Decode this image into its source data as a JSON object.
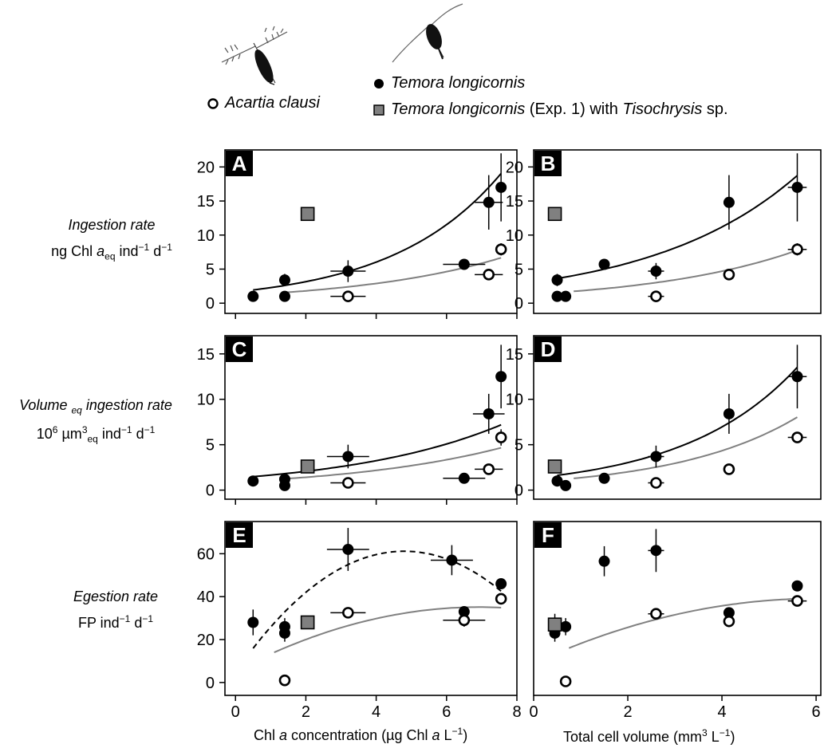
{
  "legend": {
    "acartia": "Acartia clausi",
    "temora": "Temora longicornis",
    "temora_exp_species": "Temora longicornis",
    "temora_exp_mid": " (Exp. 1) with ",
    "temora_exp_food": "Tisochrysis",
    "temora_exp_tail": " sp."
  },
  "row_labels": [
    {
      "title": "Ingestion rate",
      "units_a": "ng Chl ",
      "units_b": "a",
      "units_c": "eq",
      "units_d": " ind",
      "units_e": "−1",
      "units_f": " d",
      "units_g": "−1"
    },
    {
      "title_a": "Volume ",
      "title_b": "eq",
      "title_c": " ingestion rate",
      "units_a": "10",
      "units_b": "6",
      "units_c": " µm",
      "units_d": "3",
      "units_e": "eq",
      "units_f": " ind",
      "units_g": "−1",
      "units_h": " d",
      "units_i": "−1"
    },
    {
      "title": "Egestion rate",
      "units_a": "FP ind",
      "units_b": "−1",
      "units_c": " d",
      "units_d": "−1"
    }
  ],
  "x_labels": {
    "left_a": "Chl ",
    "left_b": "a",
    "left_c": " concentration (µg Chl ",
    "left_d": "a",
    "left_e": " L",
    "left_f": "−1",
    "left_g": ")",
    "right_a": "Total cell volume (mm",
    "right_b": "3",
    "right_c": " L",
    "right_d": "−1",
    "right_e": ")"
  },
  "colors": {
    "temora": "#000000",
    "acartia_fill": "#ffffff",
    "exp_fill": "#808080",
    "fit_acartia": "#808080",
    "fit_temora": "#000000"
  },
  "chart_data": [
    {
      "panel": "A",
      "type": "scatter",
      "xlim": [
        -0.3,
        8.0
      ],
      "ylim": [
        -1.5,
        22.5
      ],
      "xticks": [
        0,
        2,
        4,
        6,
        8
      ],
      "yticks": [
        0,
        5,
        10,
        15,
        20
      ],
      "series": [
        {
          "name": "Temora longicornis",
          "points": [
            {
              "x": 0.5,
              "y": 1.0,
              "xerr": 0,
              "yerr": 0
            },
            {
              "x": 1.4,
              "y": 3.4,
              "xerr": 0,
              "yerr": 0.9
            },
            {
              "x": 1.4,
              "y": 1.0,
              "xerr": 0,
              "yerr": 0
            },
            {
              "x": 3.2,
              "y": 4.7,
              "xerr": 0.5,
              "yerr": 1.6
            },
            {
              "x": 6.5,
              "y": 5.7,
              "xerr": 0.6,
              "yerr": 0
            },
            {
              "x": 7.2,
              "y": 14.8,
              "xerr": 0.4,
              "yerr": 4.0
            },
            {
              "x": 7.55,
              "y": 17.0,
              "xerr": 0,
              "yerr": 5.0
            }
          ]
        },
        {
          "name": "Acartia clausi",
          "points": [
            {
              "x": 3.2,
              "y": 1.0,
              "xerr": 0.5,
              "yerr": 0
            },
            {
              "x": 7.2,
              "y": 4.2,
              "xerr": 0.4,
              "yerr": 0
            },
            {
              "x": 7.55,
              "y": 7.9,
              "xerr": 0,
              "yerr": 0.9
            }
          ]
        },
        {
          "name": "Temora longicornis (Exp. 1) with Tisochrysis sp.",
          "points": [
            {
              "x": 2.05,
              "y": 13.1,
              "xerr": 0,
              "yerr": 0
            }
          ]
        }
      ],
      "fits": [
        {
          "for": "Temora longicornis",
          "style": "solid",
          "x0": 0.5,
          "x1": 7.55,
          "a": 1.65,
          "b": 0.324
        },
        {
          "for": "Acartia clausi",
          "style": "solid",
          "x0": 1.4,
          "x1": 7.55,
          "a": 1.13,
          "b": 0.235
        }
      ]
    },
    {
      "panel": "B",
      "type": "scatter",
      "xlim": [
        0,
        6.1
      ],
      "ylim": [
        -1.5,
        22.5
      ],
      "xticks": [],
      "yticks": [
        0,
        5,
        10,
        15,
        20
      ],
      "series": [
        {
          "name": "Temora longicornis",
          "points": [
            {
              "x": 0.5,
              "y": 3.4,
              "xerr": 0,
              "yerr": 0.9
            },
            {
              "x": 0.5,
              "y": 1.0,
              "xerr": 0,
              "yerr": 0
            },
            {
              "x": 0.68,
              "y": 1.0,
              "xerr": 0,
              "yerr": 0
            },
            {
              "x": 1.5,
              "y": 5.7,
              "xerr": 0,
              "yerr": 0
            },
            {
              "x": 2.6,
              "y": 4.7,
              "xerr": 0.17,
              "yerr": 1.2
            },
            {
              "x": 4.15,
              "y": 14.8,
              "xerr": 0,
              "yerr": 4.0
            },
            {
              "x": 5.6,
              "y": 17.0,
              "xerr": 0.2,
              "yerr": 5.0
            }
          ]
        },
        {
          "name": "Acartia clausi",
          "points": [
            {
              "x": 2.6,
              "y": 1.0,
              "xerr": 0.17,
              "yerr": 0
            },
            {
              "x": 4.15,
              "y": 4.2,
              "xerr": 0,
              "yerr": 0
            },
            {
              "x": 5.6,
              "y": 7.9,
              "xerr": 0.2,
              "yerr": 0.9
            }
          ]
        },
        {
          "name": "Temora longicornis (Exp. 1) with Tisochrysis sp.",
          "points": [
            {
              "x": 0.45,
              "y": 13.1,
              "xerr": 0,
              "yerr": 0
            }
          ]
        }
      ],
      "fits": [
        {
          "for": "Temora longicornis",
          "style": "solid",
          "x0": 0.5,
          "x1": 5.6,
          "a": 3.08,
          "b": 0.3225
        },
        {
          "for": "Acartia clausi",
          "style": "solid",
          "x0": 0.85,
          "x1": 5.6,
          "a": 1.33,
          "b": 0.315
        }
      ]
    },
    {
      "panel": "C",
      "type": "scatter",
      "xlim": [
        -0.3,
        8.0
      ],
      "ylim": [
        -1.0,
        17.0
      ],
      "xticks": [
        0,
        2,
        4,
        6,
        8
      ],
      "yticks": [
        0,
        5,
        10,
        15
      ],
      "series": [
        {
          "name": "Temora longicornis",
          "points": [
            {
              "x": 0.5,
              "y": 1.0,
              "xerr": 0,
              "yerr": 0
            },
            {
              "x": 1.4,
              "y": 1.2,
              "xerr": 0,
              "yerr": 0
            },
            {
              "x": 1.4,
              "y": 0.5,
              "xerr": 0,
              "yerr": 0
            },
            {
              "x": 3.2,
              "y": 3.7,
              "xerr": 0.6,
              "yerr": 1.3
            },
            {
              "x": 6.5,
              "y": 1.3,
              "xerr": 0.6,
              "yerr": 0
            },
            {
              "x": 7.2,
              "y": 8.4,
              "xerr": 0.45,
              "yerr": 2.2
            },
            {
              "x": 7.55,
              "y": 12.5,
              "xerr": 0,
              "yerr": 3.5
            }
          ]
        },
        {
          "name": "Acartia clausi",
          "points": [
            {
              "x": 3.2,
              "y": 0.8,
              "xerr": 0.5,
              "yerr": 0
            },
            {
              "x": 7.2,
              "y": 2.3,
              "xerr": 0.4,
              "yerr": 0
            },
            {
              "x": 7.55,
              "y": 5.8,
              "xerr": 0,
              "yerr": 0.9
            }
          ]
        },
        {
          "name": "Temora longicornis (Exp. 1) with Tisochrysis sp.",
          "points": [
            {
              "x": 2.05,
              "y": 2.6,
              "xerr": 0,
              "yerr": 0
            }
          ]
        }
      ],
      "fits": [
        {
          "for": "Temora longicornis",
          "style": "solid",
          "x0": 0.5,
          "x1": 7.55,
          "a": 1.32,
          "b": 0.2245
        },
        {
          "for": "Acartia clausi",
          "style": "solid",
          "x0": 1.4,
          "x1": 7.55,
          "a": 0.92,
          "b": 0.215
        }
      ]
    },
    {
      "panel": "D",
      "type": "scatter",
      "xlim": [
        0,
        6.1
      ],
      "ylim": [
        -1.0,
        17.0
      ],
      "xticks": [],
      "yticks": [
        0,
        5,
        10,
        15
      ],
      "series": [
        {
          "name": "Temora longicornis",
          "points": [
            {
              "x": 0.5,
              "y": 1.0,
              "xerr": 0,
              "yerr": 0
            },
            {
              "x": 0.68,
              "y": 0.5,
              "xerr": 0,
              "yerr": 0
            },
            {
              "x": 1.5,
              "y": 1.3,
              "xerr": 0,
              "yerr": 0
            },
            {
              "x": 2.6,
              "y": 3.7,
              "xerr": 0.17,
              "yerr": 1.2
            },
            {
              "x": 4.15,
              "y": 8.4,
              "xerr": 0,
              "yerr": 2.2
            },
            {
              "x": 5.6,
              "y": 12.5,
              "xerr": 0.2,
              "yerr": 3.5
            }
          ]
        },
        {
          "name": "Acartia clausi",
          "points": [
            {
              "x": 2.6,
              "y": 0.8,
              "xerr": 0.17,
              "yerr": 0
            },
            {
              "x": 4.15,
              "y": 2.3,
              "xerr": 0,
              "yerr": 0
            },
            {
              "x": 5.6,
              "y": 5.8,
              "xerr": 0.2,
              "yerr": 0.5
            }
          ]
        },
        {
          "name": "Temora longicornis (Exp. 1) with Tisochrysis sp.",
          "points": [
            {
              "x": 0.45,
              "y": 2.6,
              "xerr": 0,
              "yerr": 0
            }
          ]
        }
      ],
      "fits": [
        {
          "for": "Temora longicornis",
          "style": "solid",
          "x0": 0.5,
          "x1": 5.6,
          "a": 1.32,
          "b": 0.4155
        },
        {
          "for": "Acartia clausi",
          "style": "solid",
          "x0": 0.85,
          "x1": 5.6,
          "a": 0.93,
          "b": 0.385
        }
      ]
    },
    {
      "panel": "E",
      "type": "scatter",
      "xlim": [
        -0.3,
        8.0
      ],
      "ylim": [
        -6,
        75
      ],
      "xticks": [
        0,
        2,
        4,
        6,
        8
      ],
      "yticks": [
        0,
        20,
        40,
        60
      ],
      "series": [
        {
          "name": "Temora longicornis",
          "points": [
            {
              "x": 0.5,
              "y": 28,
              "xerr": 0,
              "yerr": 6
            },
            {
              "x": 1.4,
              "y": 26,
              "xerr": 0,
              "yerr": 4
            },
            {
              "x": 1.4,
              "y": 23,
              "xerr": 0,
              "yerr": 4
            },
            {
              "x": 3.2,
              "y": 62,
              "xerr": 0.6,
              "yerr": 10
            },
            {
              "x": 6.5,
              "y": 33,
              "xerr": 0,
              "yerr": 0
            },
            {
              "x": 6.15,
              "y": 57,
              "xerr": 0.6,
              "yerr": 7
            },
            {
              "x": 7.55,
              "y": 46,
              "xerr": 0,
              "yerr": 0
            }
          ]
        },
        {
          "name": "Acartia clausi",
          "points": [
            {
              "x": 1.4,
              "y": 1,
              "xerr": 0,
              "yerr": 0
            },
            {
              "x": 3.2,
              "y": 32.5,
              "xerr": 0.5,
              "yerr": 0
            },
            {
              "x": 6.5,
              "y": 29,
              "xerr": 0.6,
              "yerr": 3
            },
            {
              "x": 7.55,
              "y": 39,
              "xerr": 0,
              "yerr": 2
            }
          ]
        },
        {
          "name": "Temora longicornis (Exp. 1) with Tisochrysis sp.",
          "points": [
            {
              "x": 2.05,
              "y": 28,
              "xerr": 0,
              "yerr": 0
            }
          ]
        }
      ],
      "fits": [
        {
          "for": "Temora longicornis",
          "style": "dashed",
          "kind": "quad",
          "x0": 0.5,
          "x1": 7.55,
          "c0": 4.8,
          "c1": 23.5,
          "c2": -2.45
        },
        {
          "for": "Acartia clausi",
          "style": "solid",
          "kind": "quad",
          "x0": 1.1,
          "x1": 7.55,
          "c0": 5.3,
          "c1": 8.6,
          "c2": -0.62
        }
      ]
    },
    {
      "panel": "F",
      "type": "scatter",
      "xlim": [
        0,
        6.1
      ],
      "ylim": [
        -6,
        75
      ],
      "xticks": [
        0,
        2,
        4,
        6
      ],
      "yticks": [],
      "series": [
        {
          "name": "Temora longicornis",
          "points": [
            {
              "x": 0.45,
              "y": 23,
              "xerr": 0,
              "yerr": 4
            },
            {
              "x": 0.68,
              "y": 26,
              "xerr": 0,
              "yerr": 4
            },
            {
              "x": 1.5,
              "y": 56.5,
              "xerr": 0,
              "yerr": 7
            },
            {
              "x": 2.6,
              "y": 61.5,
              "xerr": 0.17,
              "yerr": 10
            },
            {
              "x": 4.15,
              "y": 32.5,
              "xerr": 0,
              "yerr": 0
            },
            {
              "x": 5.6,
              "y": 45,
              "xerr": 0,
              "yerr": 0
            }
          ]
        },
        {
          "name": "Acartia clausi",
          "points": [
            {
              "x": 0.68,
              "y": 0.5,
              "xerr": 0,
              "yerr": 0
            },
            {
              "x": 2.6,
              "y": 32,
              "xerr": 0.17,
              "yerr": 0
            },
            {
              "x": 4.15,
              "y": 28.5,
              "xerr": 0,
              "yerr": 2
            },
            {
              "x": 5.6,
              "y": 38,
              "xerr": 0.2,
              "yerr": 0
            }
          ]
        },
        {
          "name": "Temora longicornis (Exp. 1) with Tisochrysis sp.",
          "points": [
            {
              "x": 0.45,
              "y": 27,
              "xerr": 0,
              "yerr": 5
            }
          ]
        }
      ],
      "fits": [
        {
          "for": "Acartia clausi",
          "style": "solid",
          "kind": "quad",
          "x0": 0.75,
          "x1": 5.6,
          "c0": 9.0,
          "c1": 10.0,
          "c2": -0.83
        }
      ]
    }
  ]
}
